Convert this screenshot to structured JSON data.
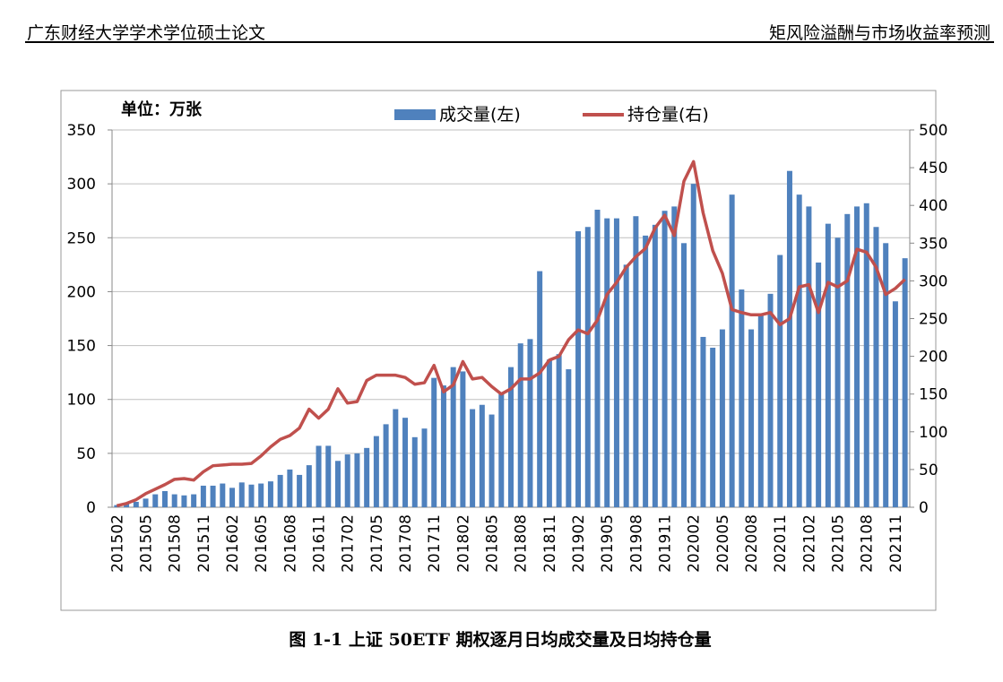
{
  "header": {
    "left": "广东财经大学学术学位硕士论文",
    "right": "矩风险溢酬与市场收益率预测"
  },
  "chart_data": {
    "type": "bar",
    "annotation": "单位：万张",
    "categories": [
      "201502",
      null,
      null,
      "201505",
      null,
      null,
      "201508",
      null,
      null,
      "201511",
      null,
      null,
      "201602",
      null,
      null,
      "201605",
      null,
      null,
      "201608",
      null,
      null,
      "201611",
      null,
      null,
      "201702",
      null,
      null,
      "201705",
      null,
      null,
      "201708",
      null,
      null,
      "201711",
      null,
      null,
      "201802",
      null,
      null,
      "201805",
      null,
      null,
      "201808",
      null,
      null,
      "201811",
      null,
      null,
      "201902",
      null,
      null,
      "201905",
      null,
      null,
      "201908",
      null,
      null,
      "201911",
      null,
      null,
      "202002",
      null,
      null,
      "202005",
      null,
      null,
      "202008",
      null,
      null,
      "202011",
      null,
      null,
      "202102",
      null,
      null,
      "202105",
      null,
      null,
      "202108",
      null,
      null,
      "202111",
      null
    ],
    "series": [
      {
        "name": "成交量(左)",
        "type": "bar",
        "color": "#4f81bd",
        "values": [
          2,
          3,
          5,
          8,
          12,
          15,
          12,
          11,
          12,
          20,
          20,
          22,
          18,
          23,
          21,
          22,
          24,
          30,
          35,
          30,
          39,
          57,
          57,
          43,
          49,
          50,
          55,
          66,
          77,
          91,
          83,
          65,
          73,
          120,
          113,
          130,
          126,
          91,
          95,
          86,
          105,
          130,
          152,
          156,
          219,
          137,
          142,
          128,
          256,
          260,
          276,
          268,
          268,
          225,
          270,
          252,
          262,
          275,
          279,
          245,
          300,
          158,
          148,
          165,
          290,
          202,
          165,
          180,
          198,
          234,
          312,
          290,
          279,
          227,
          263,
          250,
          272,
          279,
          282,
          260,
          245,
          191,
          231
        ]
      },
      {
        "name": "持仓量(右)",
        "type": "line",
        "axis": "y2",
        "color": "#c0504d",
        "values": [
          2,
          5,
          10,
          18,
          24,
          30,
          37,
          38,
          36,
          47,
          55,
          56,
          57,
          57,
          58,
          68,
          80,
          90,
          95,
          105,
          130,
          118,
          130,
          157,
          138,
          140,
          168,
          175,
          175,
          175,
          172,
          163,
          165,
          188,
          153,
          162,
          193,
          170,
          172,
          160,
          150,
          157,
          170,
          170,
          178,
          195,
          200,
          222,
          235,
          230,
          248,
          282,
          298,
          318,
          332,
          343,
          370,
          387,
          360,
          432,
          458,
          390,
          340,
          310,
          262,
          258,
          255,
          255,
          258,
          242,
          250,
          292,
          295,
          258,
          298,
          292,
          300,
          342,
          338,
          318,
          282,
          290,
          302
        ]
      }
    ],
    "ylim": [
      0,
      350
    ],
    "yticks": [
      0,
      50,
      100,
      150,
      200,
      250,
      300,
      350
    ],
    "y2lim": [
      0,
      500
    ],
    "y2ticks": [
      0,
      50,
      100,
      150,
      200,
      250,
      300,
      350,
      400,
      450,
      500
    ],
    "grid": true
  },
  "caption": "图 1-1  上证 50ETF 期权逐月日均成交量及日均持仓量"
}
